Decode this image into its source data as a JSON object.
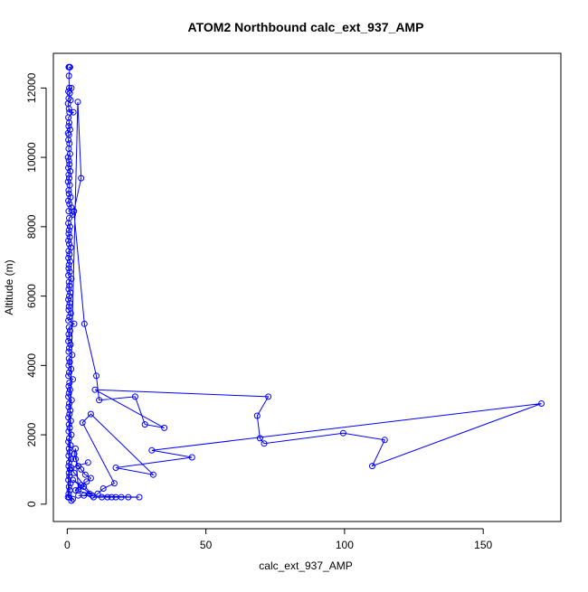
{
  "chart_data": {
    "type": "scatter",
    "title": "ATOM2 Northbound calc_ext_937_AMP",
    "xlabel": "calc_ext_937_AMP",
    "ylabel": "Altitude (m)",
    "xlim": [
      -5,
      178
    ],
    "ylim": [
      -500,
      13000
    ],
    "x_ticks": [
      0,
      50,
      100,
      150
    ],
    "y_ticks": [
      0,
      2000,
      4000,
      6000,
      8000,
      10000,
      12000
    ],
    "series": [
      {
        "color": "#0000ff",
        "marker": "open-circle",
        "line": true,
        "points": [
          [
            0.5,
            12600
          ],
          [
            0.8,
            12600
          ],
          [
            1.0,
            12600
          ],
          [
            0.6,
            12350
          ],
          [
            0.7,
            12000
          ],
          [
            1.5,
            12000
          ],
          [
            0.4,
            11900
          ],
          [
            0.9,
            11850
          ],
          [
            0.5,
            11700
          ],
          [
            1.2,
            11650
          ],
          [
            0.3,
            11550
          ],
          [
            0.6,
            11400
          ],
          [
            0.8,
            11300
          ],
          [
            2.2,
            11300
          ],
          [
            0.4,
            11150
          ],
          [
            0.7,
            11000
          ],
          [
            0.5,
            10900
          ],
          [
            1.0,
            10800
          ],
          [
            0.3,
            10700
          ],
          [
            0.6,
            10650
          ],
          [
            0.4,
            10500
          ],
          [
            0.8,
            10400
          ],
          [
            0.5,
            10250
          ],
          [
            1.0,
            10100
          ],
          [
            0.3,
            10000
          ],
          [
            0.6,
            9900
          ],
          [
            0.8,
            9800
          ],
          [
            0.4,
            9700
          ],
          [
            1.1,
            9600
          ],
          [
            0.5,
            9500
          ],
          [
            0.7,
            9400
          ],
          [
            0.3,
            9300
          ],
          [
            0.9,
            9200
          ],
          [
            0.5,
            9050
          ],
          [
            0.6,
            8950
          ],
          [
            1.2,
            8850
          ],
          [
            0.4,
            8750
          ],
          [
            0.8,
            8650
          ],
          [
            1.5,
            8550
          ],
          [
            0.5,
            8450
          ],
          [
            2.0,
            8350
          ],
          [
            0.7,
            8250
          ],
          [
            0.4,
            8100
          ],
          [
            1.0,
            8000
          ],
          [
            0.6,
            7900
          ],
          [
            0.5,
            7800
          ],
          [
            0.9,
            7700
          ],
          [
            0.4,
            7600
          ],
          [
            0.7,
            7500
          ],
          [
            1.3,
            7400
          ],
          [
            0.5,
            7300
          ],
          [
            0.8,
            7200
          ],
          [
            0.4,
            7100
          ],
          [
            1.0,
            7000
          ],
          [
            0.6,
            6900
          ],
          [
            0.5,
            6800
          ],
          [
            0.9,
            6700
          ],
          [
            0.4,
            6600
          ],
          [
            1.5,
            6500
          ],
          [
            0.6,
            6400
          ],
          [
            0.8,
            6300
          ],
          [
            0.5,
            6200
          ],
          [
            1.1,
            6100
          ],
          [
            0.7,
            6000
          ],
          [
            0.4,
            5900
          ],
          [
            0.9,
            5800
          ],
          [
            0.6,
            5700
          ],
          [
            0.5,
            5600
          ],
          [
            1.3,
            5500
          ],
          [
            0.8,
            5400
          ],
          [
            0.4,
            5300
          ],
          [
            2.5,
            5200
          ],
          [
            0.6,
            5100
          ],
          [
            1.0,
            5000
          ],
          [
            0.5,
            4900
          ],
          [
            0.8,
            4800
          ],
          [
            0.4,
            4700
          ],
          [
            1.2,
            4600
          ],
          [
            0.7,
            4500
          ],
          [
            0.5,
            4400
          ],
          [
            1.8,
            4300
          ],
          [
            0.6,
            4200
          ],
          [
            0.9,
            4100
          ],
          [
            0.5,
            4000
          ],
          [
            1.4,
            3900
          ],
          [
            0.7,
            3800
          ],
          [
            0.4,
            3700
          ],
          [
            2.0,
            3600
          ],
          [
            0.8,
            3500
          ],
          [
            0.5,
            3400
          ],
          [
            1.0,
            3300
          ],
          [
            0.6,
            3200
          ],
          [
            0.4,
            3100
          ],
          [
            1.6,
            3000
          ],
          [
            0.7,
            2900
          ],
          [
            0.5,
            2800
          ],
          [
            1.1,
            2700
          ],
          [
            0.8,
            2600
          ],
          [
            0.4,
            2500
          ],
          [
            1.3,
            2400
          ],
          [
            0.6,
            2300
          ],
          [
            0.9,
            2200
          ],
          [
            0.5,
            2100
          ],
          [
            1.5,
            2000
          ],
          [
            0.7,
            1900
          ],
          [
            0.4,
            1800
          ],
          [
            1.2,
            1700
          ],
          [
            0.6,
            1600
          ],
          [
            0.9,
            1500
          ],
          [
            0.5,
            1400
          ],
          [
            1.4,
            1300
          ],
          [
            0.7,
            1200
          ],
          [
            0.5,
            1100
          ],
          [
            1.0,
            1000
          ],
          [
            0.6,
            900
          ],
          [
            0.8,
            800
          ],
          [
            0.4,
            700
          ],
          [
            1.2,
            600
          ],
          [
            0.6,
            500
          ],
          [
            0.9,
            400
          ],
          [
            0.5,
            300
          ],
          [
            0.7,
            200
          ],
          [
            1.5,
            100
          ],
          [
            2.0,
            150
          ],
          [
            0.3,
            200
          ],
          [
            3.8,
            11600
          ],
          [
            5.0,
            9400
          ],
          [
            2.4,
            8450
          ],
          [
            6.2,
            5200
          ],
          [
            10.5,
            3700
          ],
          [
            11.5,
            3000
          ],
          [
            24.5,
            3100
          ],
          [
            28.0,
            2300
          ],
          [
            35.0,
            2200
          ],
          [
            10.0,
            3300
          ],
          [
            72.5,
            3100
          ],
          [
            68.5,
            2550
          ],
          [
            69.5,
            1900
          ],
          [
            71.0,
            1750
          ],
          [
            99.5,
            2050
          ],
          [
            114.5,
            1850
          ],
          [
            110.0,
            1100
          ],
          [
            171.0,
            2900
          ],
          [
            30.5,
            1550
          ],
          [
            45.0,
            1350
          ],
          [
            17.5,
            1050
          ],
          [
            31.0,
            850
          ],
          [
            8.5,
            2600
          ],
          [
            5.5,
            2350
          ],
          [
            17.0,
            600
          ],
          [
            13.0,
            450
          ],
          [
            11.0,
            300
          ],
          [
            9.5,
            200
          ],
          [
            12.5,
            200
          ],
          [
            14.5,
            200
          ],
          [
            16.0,
            200
          ],
          [
            17.5,
            200
          ],
          [
            19.5,
            200
          ],
          [
            22.0,
            200
          ],
          [
            26.0,
            200
          ],
          [
            4.0,
            250
          ],
          [
            6.0,
            250
          ],
          [
            8.0,
            300
          ],
          [
            3.0,
            400
          ],
          [
            5.0,
            550
          ],
          [
            7.0,
            650
          ],
          [
            8.5,
            750
          ],
          [
            6.5,
            850
          ],
          [
            5.0,
            1000
          ],
          [
            4.0,
            1100
          ],
          [
            3.0,
            1300
          ],
          [
            2.5,
            1450
          ],
          [
            3.0,
            1600
          ],
          [
            4.0,
            400
          ],
          [
            6.0,
            500
          ],
          [
            2.0,
            700
          ],
          [
            9.0,
            250
          ],
          [
            2.5,
            900
          ],
          [
            1.5,
            1050
          ],
          [
            7.5,
            1200
          ]
        ]
      }
    ]
  }
}
